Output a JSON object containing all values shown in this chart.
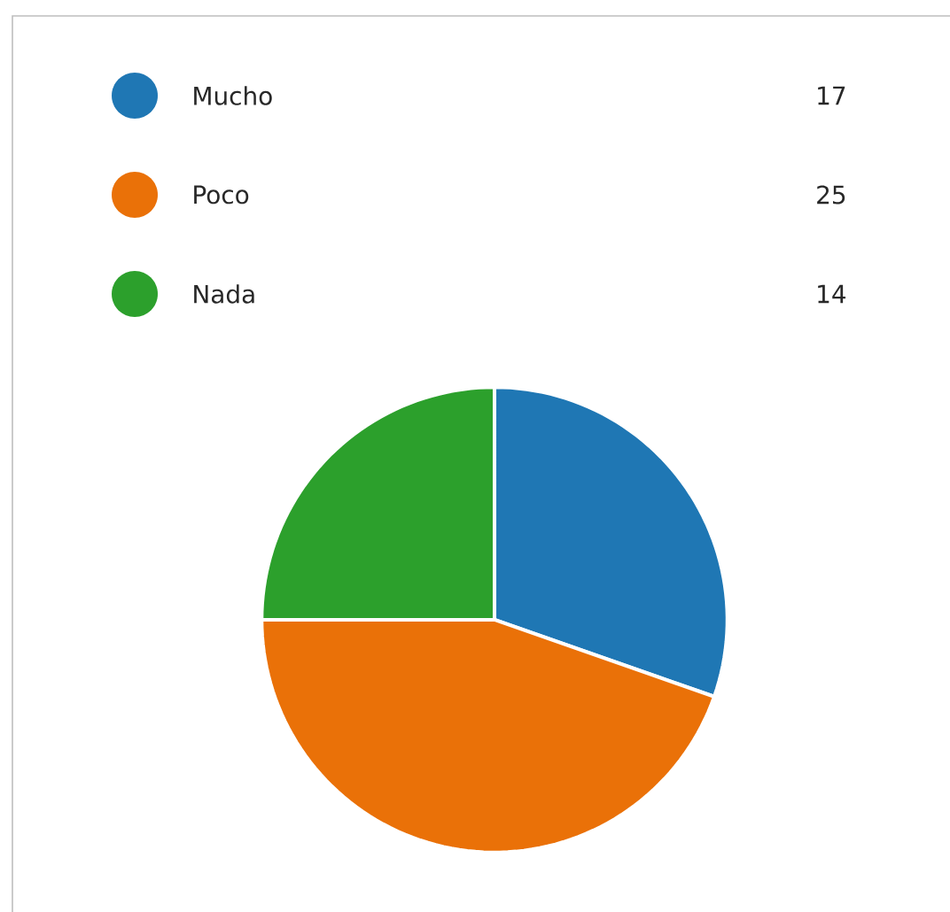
{
  "chart_data": {
    "type": "pie",
    "categories": [
      "Mucho",
      "Poco",
      "Nada"
    ],
    "values": [
      17,
      25,
      14
    ],
    "colors": [
      "#1f77b4",
      "#ea7108",
      "#2ca02c"
    ],
    "legend": "top",
    "data_labels": true
  }
}
